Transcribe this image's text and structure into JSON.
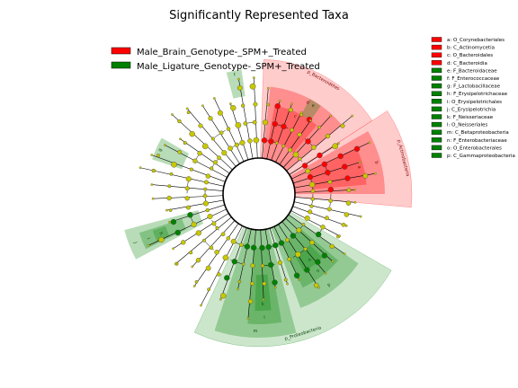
{
  "chart_data": {
    "type": "cladogram",
    "title": "Significantly Represented Taxa",
    "groups": [
      {
        "name": "Male_Brain_Genotype-_SPM+_Treated",
        "color": "#ff0000"
      },
      {
        "name": "Male_Ligature_Genotype-_SPM+_Treated",
        "color": "#008000"
      }
    ],
    "key": [
      {
        "letter": "a",
        "text": "a: O_Corynebacteriales",
        "group": 0
      },
      {
        "letter": "b",
        "text": "b: C_Actinomycetia",
        "group": 0
      },
      {
        "letter": "c",
        "text": "c: O_Bacteroidales",
        "group": 0
      },
      {
        "letter": "d",
        "text": "d: C_Bacteroidia",
        "group": 0
      },
      {
        "letter": "e",
        "text": "e: F_Bacteroidaceae",
        "group": 1
      },
      {
        "letter": "f",
        "text": "f: F_Enterococcaceae",
        "group": 1
      },
      {
        "letter": "g",
        "text": "g: F_Lactobacillaceae",
        "group": 1
      },
      {
        "letter": "h",
        "text": "h: F_Erysipelotrichaceae",
        "group": 1
      },
      {
        "letter": "i",
        "text": "i: O_Erysipelotrichales",
        "group": 1
      },
      {
        "letter": "j",
        "text": "j: C_Erysipelotrichia",
        "group": 1
      },
      {
        "letter": "k",
        "text": "k: F_Neisseriaceae",
        "group": 1
      },
      {
        "letter": "l",
        "text": "l: O_Neisseriales",
        "group": 1
      },
      {
        "letter": "m",
        "text": "m: C_Betaproteobacteria",
        "group": 1
      },
      {
        "letter": "n",
        "text": "n: F_Enterobacteriaceae",
        "group": 1
      },
      {
        "letter": "o",
        "text": "o: O_Enterobacterales",
        "group": 1
      },
      {
        "letter": "p",
        "text": "p: C_Gammaproteobacteria",
        "group": 1
      }
    ],
    "phyla": [
      {
        "label": "p_Bacteroidetes",
        "group": 0
      },
      {
        "label": "p_Actinobacteria",
        "group": 0
      },
      {
        "label": "p_Proteobacteria",
        "group": 1
      }
    ]
  }
}
